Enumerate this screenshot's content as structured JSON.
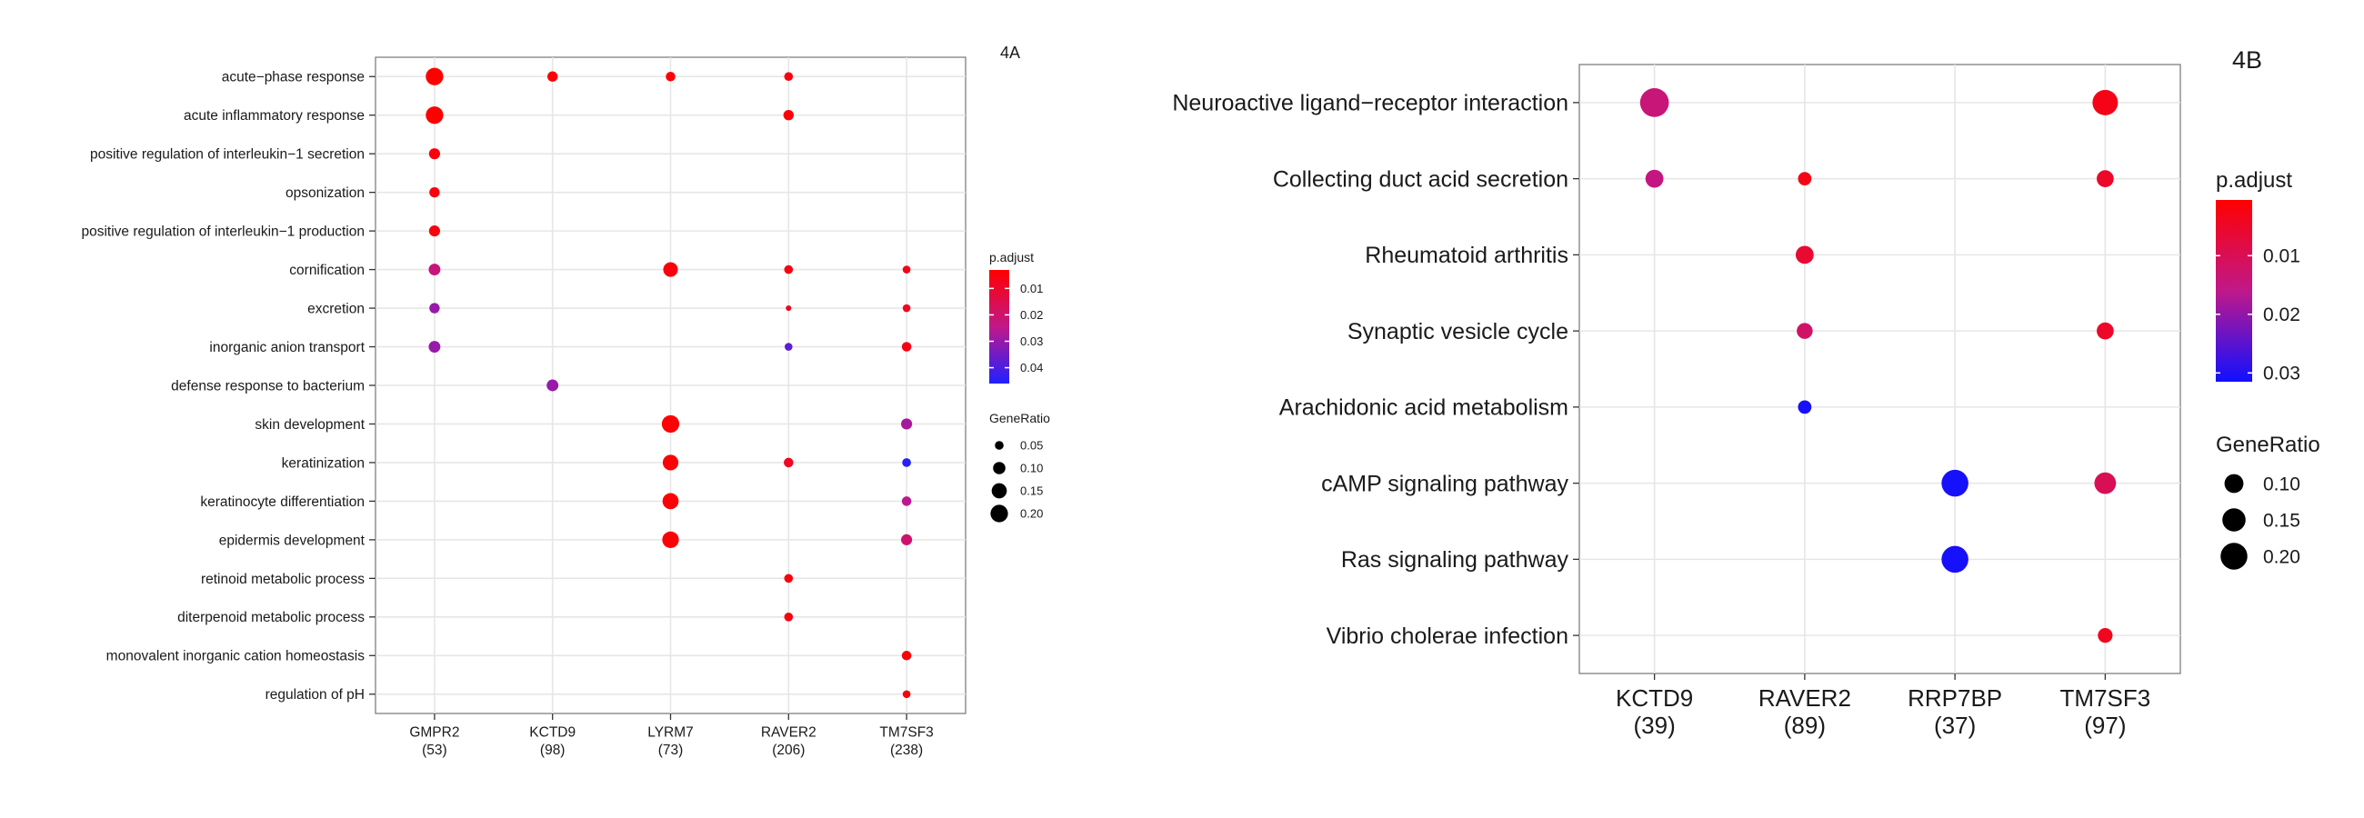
{
  "chart_data": [
    {
      "type": "scatter",
      "panel_label": "4A",
      "x_categories": [
        "GMPR2",
        "KCTD9",
        "LYRM7",
        "RAVER2",
        "TM7SF3"
      ],
      "x_counts": [
        "(53)",
        "(98)",
        "(73)",
        "(206)",
        "(238)"
      ],
      "y_categories": [
        "acute−phase response",
        "acute inflammatory response",
        "positive regulation of interleukin−1 secretion",
        "opsonization",
        "positive regulation of interleukin−1 production",
        "cornification",
        "excretion",
        "inorganic anion transport",
        "defense response to bacterium",
        "skin development",
        "keratinization",
        "keratinocyte differentiation",
        "epidermis development",
        "retinoid metabolic process",
        "diterpenoid metabolic process",
        "monovalent inorganic cation homeostasis",
        "regulation of pH"
      ],
      "points": [
        {
          "x": "GMPR2",
          "y": "acute−phase response",
          "gene_ratio": 0.2,
          "p_adjust": 0.003
        },
        {
          "x": "KCTD9",
          "y": "acute−phase response",
          "gene_ratio": 0.07,
          "p_adjust": 0.004
        },
        {
          "x": "LYRM7",
          "y": "acute−phase response",
          "gene_ratio": 0.06,
          "p_adjust": 0.004
        },
        {
          "x": "RAVER2",
          "y": "acute−phase response",
          "gene_ratio": 0.05,
          "p_adjust": 0.005
        },
        {
          "x": "GMPR2",
          "y": "acute inflammatory response",
          "gene_ratio": 0.2,
          "p_adjust": 0.003
        },
        {
          "x": "RAVER2",
          "y": "acute inflammatory response",
          "gene_ratio": 0.07,
          "p_adjust": 0.004
        },
        {
          "x": "GMPR2",
          "y": "positive regulation of interleukin−1 secretion",
          "gene_ratio": 0.08,
          "p_adjust": 0.005
        },
        {
          "x": "GMPR2",
          "y": "opsonization",
          "gene_ratio": 0.07,
          "p_adjust": 0.005
        },
        {
          "x": "GMPR2",
          "y": "positive regulation of interleukin−1 production",
          "gene_ratio": 0.08,
          "p_adjust": 0.005
        },
        {
          "x": "GMPR2",
          "y": "cornification",
          "gene_ratio": 0.09,
          "p_adjust": 0.022
        },
        {
          "x": "LYRM7",
          "y": "cornification",
          "gene_ratio": 0.14,
          "p_adjust": 0.005
        },
        {
          "x": "RAVER2",
          "y": "cornification",
          "gene_ratio": 0.05,
          "p_adjust": 0.006
        },
        {
          "x": "TM7SF3",
          "y": "cornification",
          "gene_ratio": 0.04,
          "p_adjust": 0.006
        },
        {
          "x": "GMPR2",
          "y": "excretion",
          "gene_ratio": 0.07,
          "p_adjust": 0.03
        },
        {
          "x": "RAVER2",
          "y": "excretion",
          "gene_ratio": 0.02,
          "p_adjust": 0.008
        },
        {
          "x": "TM7SF3",
          "y": "excretion",
          "gene_ratio": 0.04,
          "p_adjust": 0.008
        },
        {
          "x": "GMPR2",
          "y": "inorganic anion transport",
          "gene_ratio": 0.09,
          "p_adjust": 0.03
        },
        {
          "x": "RAVER2",
          "y": "inorganic anion transport",
          "gene_ratio": 0.04,
          "p_adjust": 0.038
        },
        {
          "x": "TM7SF3",
          "y": "inorganic anion transport",
          "gene_ratio": 0.06,
          "p_adjust": 0.006
        },
        {
          "x": "KCTD9",
          "y": "defense response to bacterium",
          "gene_ratio": 0.09,
          "p_adjust": 0.03
        },
        {
          "x": "LYRM7",
          "y": "skin development",
          "gene_ratio": 0.2,
          "p_adjust": 0.004
        },
        {
          "x": "TM7SF3",
          "y": "skin development",
          "gene_ratio": 0.08,
          "p_adjust": 0.028
        },
        {
          "x": "LYRM7",
          "y": "keratinization",
          "gene_ratio": 0.16,
          "p_adjust": 0.004
        },
        {
          "x": "RAVER2",
          "y": "keratinization",
          "gene_ratio": 0.06,
          "p_adjust": 0.008
        },
        {
          "x": "TM7SF3",
          "y": "keratinization",
          "gene_ratio": 0.05,
          "p_adjust": 0.045
        },
        {
          "x": "LYRM7",
          "y": "keratinocyte differentiation",
          "gene_ratio": 0.17,
          "p_adjust": 0.004
        },
        {
          "x": "TM7SF3",
          "y": "keratinocyte differentiation",
          "gene_ratio": 0.06,
          "p_adjust": 0.025
        },
        {
          "x": "LYRM7",
          "y": "epidermis development",
          "gene_ratio": 0.18,
          "p_adjust": 0.004
        },
        {
          "x": "TM7SF3",
          "y": "epidermis development",
          "gene_ratio": 0.08,
          "p_adjust": 0.02
        },
        {
          "x": "RAVER2",
          "y": "retinoid metabolic process",
          "gene_ratio": 0.05,
          "p_adjust": 0.005
        },
        {
          "x": "RAVER2",
          "y": "diterpenoid metabolic process",
          "gene_ratio": 0.05,
          "p_adjust": 0.005
        },
        {
          "x": "TM7SF3",
          "y": "monovalent inorganic cation homeostasis",
          "gene_ratio": 0.06,
          "p_adjust": 0.005
        },
        {
          "x": "TM7SF3",
          "y": "regulation of pH",
          "gene_ratio": 0.04,
          "p_adjust": 0.005
        }
      ],
      "legend_color": {
        "title": "p.adjust",
        "ticks": [
          0.01,
          0.02,
          0.03,
          0.04
        ],
        "tick_labels": [
          "0.01",
          "0.02",
          "0.03",
          "0.04"
        ],
        "range": [
          0.003,
          0.046
        ],
        "low_color": "#ff0000",
        "high_color": "#2020ff"
      },
      "legend_size": {
        "title": "GeneRatio",
        "ticks": [
          0.05,
          0.1,
          0.15,
          0.2
        ],
        "tick_labels": [
          "0.05",
          "0.10",
          "0.15",
          "0.20"
        ]
      },
      "grid": true,
      "legend_placement": "right"
    },
    {
      "type": "scatter",
      "panel_label": "4B",
      "x_categories": [
        "KCTD9",
        "RAVER2",
        "RRP7BP",
        "TM7SF3"
      ],
      "x_counts": [
        "(39)",
        "(89)",
        "(37)",
        "(97)"
      ],
      "y_categories": [
        "Neuroactive ligand−receptor interaction",
        "Collecting duct acid secretion",
        "Rheumatoid arthritis",
        "Synaptic vesicle cycle",
        "Arachidonic acid metabolism",
        "cAMP signaling pathway",
        "Ras signaling pathway",
        "Vibrio cholerae infection"
      ],
      "points": [
        {
          "x": "KCTD9",
          "y": "Neuroactive ligand−receptor interaction",
          "gene_ratio": 0.23,
          "p_adjust": 0.014
        },
        {
          "x": "TM7SF3",
          "y": "Neuroactive ligand−receptor interaction",
          "gene_ratio": 0.18,
          "p_adjust": 0.003
        },
        {
          "x": "KCTD9",
          "y": "Collecting duct acid secretion",
          "gene_ratio": 0.09,
          "p_adjust": 0.015
        },
        {
          "x": "RAVER2",
          "y": "Collecting duct acid secretion",
          "gene_ratio": 0.05,
          "p_adjust": 0.003
        },
        {
          "x": "TM7SF3",
          "y": "Collecting duct acid secretion",
          "gene_ratio": 0.08,
          "p_adjust": 0.005
        },
        {
          "x": "RAVER2",
          "y": "Rheumatoid arthritis",
          "gene_ratio": 0.09,
          "p_adjust": 0.006
        },
        {
          "x": "RAVER2",
          "y": "Synaptic vesicle cycle",
          "gene_ratio": 0.07,
          "p_adjust": 0.012
        },
        {
          "x": "TM7SF3",
          "y": "Synaptic vesicle cycle",
          "gene_ratio": 0.08,
          "p_adjust": 0.005
        },
        {
          "x": "RAVER2",
          "y": "Arachidonic acid metabolism",
          "gene_ratio": 0.05,
          "p_adjust": 0.031
        },
        {
          "x": "RRP7BP",
          "y": "cAMP signaling pathway",
          "gene_ratio": 0.2,
          "p_adjust": 0.031
        },
        {
          "x": "TM7SF3",
          "y": "cAMP signaling pathway",
          "gene_ratio": 0.13,
          "p_adjust": 0.01
        },
        {
          "x": "RRP7BP",
          "y": "Ras signaling pathway",
          "gene_ratio": 0.2,
          "p_adjust": 0.031
        },
        {
          "x": "TM7SF3",
          "y": "Vibrio cholerae infection",
          "gene_ratio": 0.06,
          "p_adjust": 0.004
        }
      ],
      "legend_color": {
        "title": "p.adjust",
        "ticks": [
          0.01,
          0.02,
          0.03
        ],
        "tick_labels": [
          "0.01",
          "0.02",
          "0.03"
        ],
        "range": [
          0.0005,
          0.0315
        ],
        "low_color": "#ff0000",
        "high_color": "#1010ff"
      },
      "legend_size": {
        "title": "GeneRatio",
        "ticks": [
          0.1,
          0.15,
          0.2
        ],
        "tick_labels": [
          "0.10",
          "0.15",
          "0.20"
        ]
      },
      "grid": true,
      "legend_placement": "right"
    }
  ]
}
